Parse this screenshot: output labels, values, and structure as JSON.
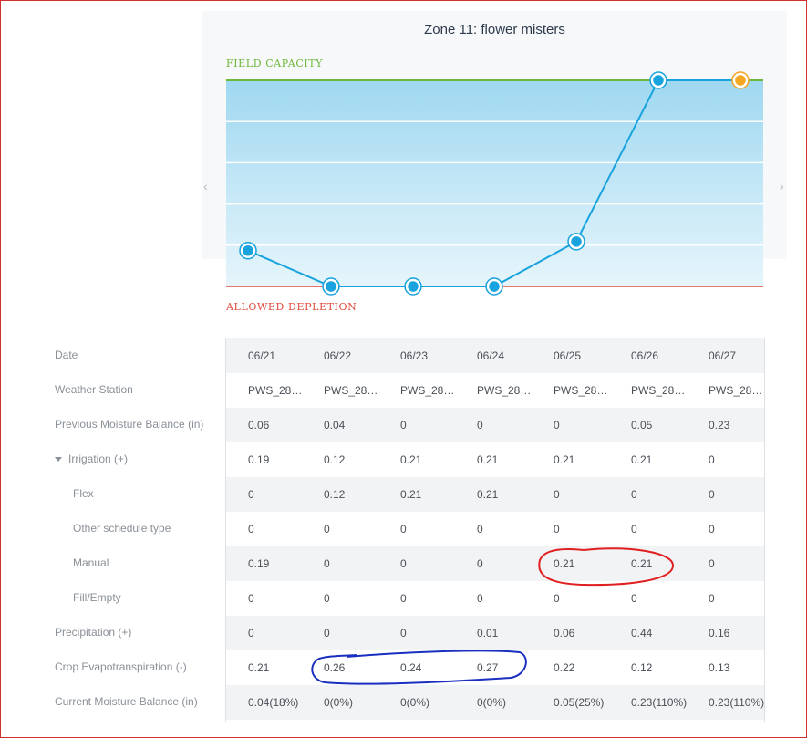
{
  "chart": {
    "title": "Zone 11: flower misters",
    "upper_label": "FIELD CAPACITY",
    "lower_label": "ALLOWED DEPLETION",
    "prev_arrow": "‹",
    "next_arrow": "›"
  },
  "chart_data": {
    "type": "line",
    "x": [
      "06/21",
      "06/22",
      "06/23",
      "06/24",
      "06/25",
      "06/26",
      "06/27"
    ],
    "series": [
      {
        "values": [
          0.04,
          0,
          0,
          0,
          0.05,
          0.23,
          0.23
        ],
        "color": "#18a3de",
        "forecast_color": "#f5a623"
      }
    ],
    "ylim": [
      0,
      0.23
    ],
    "upper_band_color": "#6fb73a",
    "lower_band_color": "#e24b3b"
  },
  "table": {
    "dates": [
      "06/21",
      "06/22",
      "06/23",
      "06/24",
      "06/25",
      "06/26",
      "06/27"
    ],
    "rows": [
      {
        "label": "Previous Moisture Balance (in)",
        "values": [
          "0.06",
          "0.04",
          "0",
          "0",
          "0",
          "0.05",
          "0.23"
        ]
      },
      {
        "label": "Irrigation (+)",
        "values": [
          "0.19",
          "0.12",
          "0.21",
          "0.21",
          "0.21",
          "0.21",
          "0"
        ]
      },
      {
        "label": "Flex",
        "values": [
          "0",
          "0.12",
          "0.21",
          "0.21",
          "0",
          "0",
          "0"
        ]
      },
      {
        "label": "Other schedule type",
        "values": [
          "0",
          "0",
          "0",
          "0",
          "0",
          "0",
          "0"
        ]
      },
      {
        "label": "Manual",
        "values": [
          "0.19",
          "0",
          "0",
          "0",
          "0.21",
          "0.21",
          "0"
        ]
      },
      {
        "label": "Fill/Empty",
        "values": [
          "0",
          "0",
          "0",
          "0",
          "0",
          "0",
          "0"
        ]
      },
      {
        "label": "Precipitation (+)",
        "values": [
          "0",
          "0",
          "0",
          "0.01",
          "0.06",
          "0.44",
          "0.16"
        ]
      },
      {
        "label": "Crop Evapotranspiration (-)",
        "values": [
          "0.21",
          "0.26",
          "0.24",
          "0.27",
          "0.22",
          "0.12",
          "0.13"
        ]
      },
      {
        "label": "Current Moisture Balance (in)",
        "values": [
          "0.04(18%)",
          "0(0%)",
          "0(0%)",
          "0(0%)",
          "0.05(25%)",
          "0.23(110%)",
          "0.23(110%)"
        ]
      }
    ],
    "date_label": "Date",
    "station_label": "Weather Station",
    "stations": [
      "PWS_28…",
      "PWS_28…",
      "PWS_28…",
      "PWS_28…",
      "PWS_28…",
      "PWS_28…",
      "PWS_28…"
    ]
  },
  "annotations": {
    "red_circle_color": "#e02020",
    "blue_circle_color": "#1a2fbf"
  }
}
